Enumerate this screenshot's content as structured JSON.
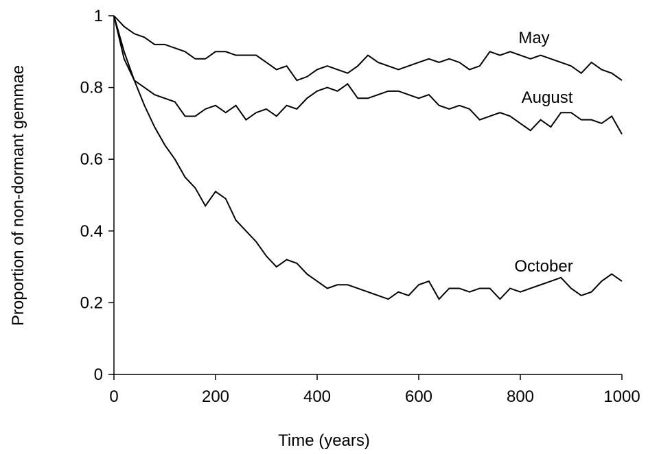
{
  "chart_data": {
    "type": "line",
    "xlabel": "Time (years)",
    "ylabel": "Proportion of non-dormant gemmae",
    "x": [
      0,
      20,
      40,
      60,
      80,
      100,
      120,
      140,
      160,
      180,
      200,
      220,
      240,
      260,
      280,
      300,
      320,
      340,
      360,
      380,
      400,
      420,
      440,
      460,
      480,
      500,
      520,
      540,
      560,
      580,
      600,
      620,
      640,
      660,
      680,
      700,
      720,
      740,
      760,
      780,
      800,
      820,
      840,
      860,
      880,
      900,
      920,
      940,
      960,
      980,
      1000
    ],
    "series": [
      {
        "name": "May",
        "color": "#000000",
        "values": [
          1,
          0.97,
          0.95,
          0.94,
          0.92,
          0.92,
          0.91,
          0.9,
          0.88,
          0.88,
          0.9,
          0.9,
          0.89,
          0.89,
          0.89,
          0.87,
          0.85,
          0.86,
          0.82,
          0.83,
          0.85,
          0.86,
          0.85,
          0.84,
          0.86,
          0.89,
          0.87,
          0.86,
          0.85,
          0.86,
          0.87,
          0.88,
          0.87,
          0.88,
          0.87,
          0.85,
          0.86,
          0.9,
          0.89,
          0.9,
          0.89,
          0.88,
          0.89,
          0.88,
          0.87,
          0.86,
          0.84,
          0.87,
          0.85,
          0.84,
          0.82
        ]
      },
      {
        "name": "August",
        "color": "#000000",
        "values": [
          1,
          0.88,
          0.82,
          0.8,
          0.78,
          0.77,
          0.76,
          0.72,
          0.72,
          0.74,
          0.75,
          0.73,
          0.75,
          0.71,
          0.73,
          0.74,
          0.72,
          0.75,
          0.74,
          0.77,
          0.79,
          0.8,
          0.79,
          0.81,
          0.77,
          0.77,
          0.78,
          0.79,
          0.79,
          0.78,
          0.77,
          0.78,
          0.75,
          0.74,
          0.75,
          0.74,
          0.71,
          0.72,
          0.73,
          0.72,
          0.7,
          0.68,
          0.71,
          0.69,
          0.73,
          0.73,
          0.71,
          0.71,
          0.7,
          0.72,
          0.67
        ]
      },
      {
        "name": "October",
        "color": "#000000",
        "values": [
          1,
          0.9,
          0.82,
          0.75,
          0.69,
          0.64,
          0.6,
          0.55,
          0.52,
          0.47,
          0.51,
          0.49,
          0.43,
          0.4,
          0.37,
          0.33,
          0.3,
          0.32,
          0.31,
          0.28,
          0.26,
          0.24,
          0.25,
          0.25,
          0.24,
          0.23,
          0.22,
          0.21,
          0.23,
          0.22,
          0.25,
          0.26,
          0.21,
          0.24,
          0.24,
          0.23,
          0.24,
          0.24,
          0.21,
          0.24,
          0.23,
          0.24,
          0.25,
          0.26,
          0.27,
          0.24,
          0.22,
          0.23,
          0.26,
          0.28,
          0.26
        ]
      }
    ],
    "xlim": [
      0,
      1000
    ],
    "xticks": [
      0,
      200,
      400,
      600,
      800,
      1000
    ],
    "ylim": [
      0,
      1
    ],
    "yticks": [
      0,
      0.2,
      0.4,
      0.6,
      0.8,
      1
    ],
    "grid": false
  }
}
